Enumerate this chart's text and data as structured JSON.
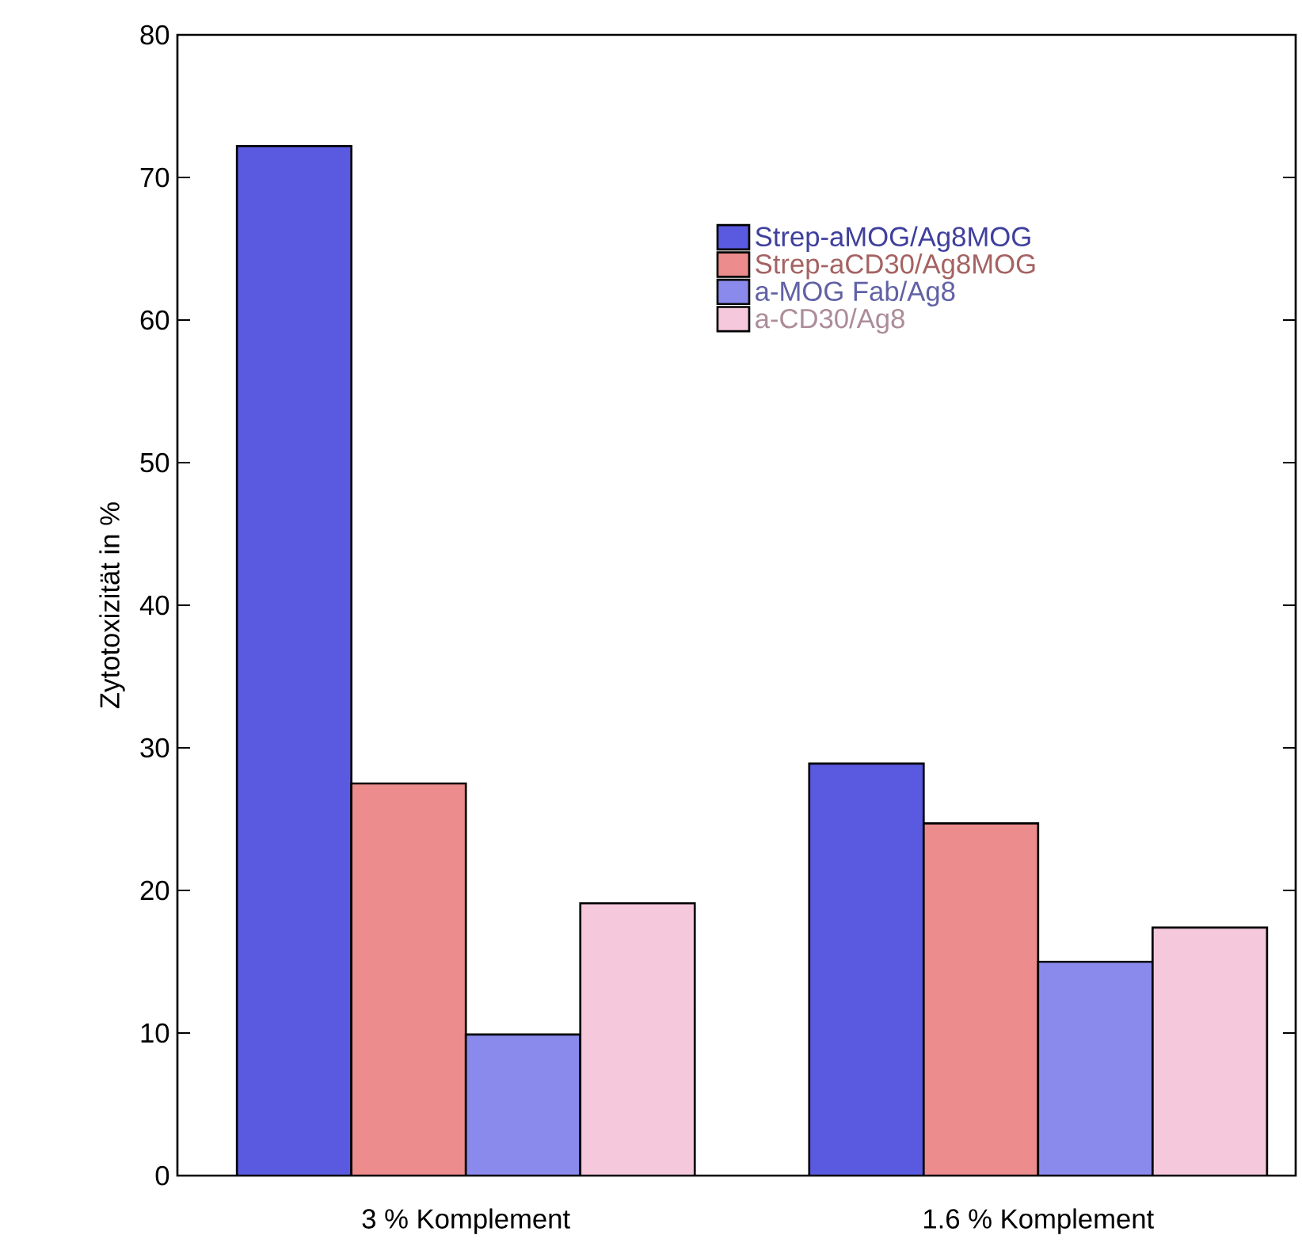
{
  "chart_data": {
    "type": "bar",
    "ylabel": "Zytotoxizität in %",
    "categories": [
      "3 % Komplement",
      "1.6 % Komplement"
    ],
    "series": [
      {
        "name": "Strep-aMOG/Ag8MOG",
        "color": "#5a5ae0",
        "values": [
          72.2,
          28.9
        ]
      },
      {
        "name": "Strep-aCD30/Ag8MOG",
        "color": "#ec8c8c",
        "values": [
          27.5,
          24.7
        ]
      },
      {
        "name": "a-MOG Fab/Ag8",
        "color": "#8a8aec",
        "values": [
          9.9,
          15.0
        ]
      },
      {
        "name": "a-CD30/Ag8",
        "color": "#f6c8dc",
        "values": [
          19.1,
          17.4
        ]
      }
    ],
    "ylim": [
      0,
      80
    ],
    "yticks": [
      0,
      10,
      20,
      30,
      40,
      50,
      60,
      70,
      80
    ],
    "legend": "top right",
    "grid": false
  }
}
